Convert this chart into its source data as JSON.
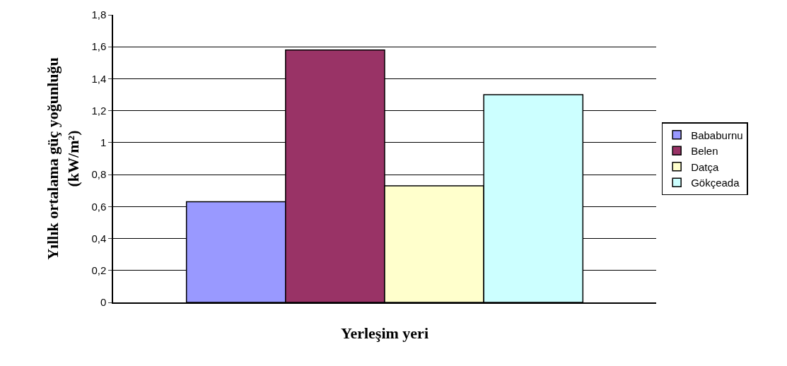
{
  "chart_data": {
    "type": "bar",
    "xlabel": "Yerleşim yeri",
    "ylabel": "Yıllık ortalama güç yoğunluğu\n(kW/m²)",
    "categories": [
      null
    ],
    "series": [
      {
        "name": "Bababurnu",
        "color": "#9999ff",
        "values": [
          0.63
        ]
      },
      {
        "name": "Belen",
        "color": "#993366",
        "values": [
          1.58
        ]
      },
      {
        "name": "Datça",
        "color": "#ffffcc",
        "values": [
          0.73
        ]
      },
      {
        "name": "Gökçeada",
        "color": "#ccffff",
        "values": [
          1.3
        ]
      }
    ],
    "ylim": [
      0,
      1.8
    ],
    "yticks": [
      {
        "value": 0,
        "label": "0"
      },
      {
        "value": 0.2,
        "label": "0,2"
      },
      {
        "value": 0.4,
        "label": "0,4"
      },
      {
        "value": 0.6,
        "label": "0,6"
      },
      {
        "value": 0.8,
        "label": "0,8"
      },
      {
        "value": 1,
        "label": "1"
      },
      {
        "value": 1.2,
        "label": "1,2"
      },
      {
        "value": 1.4,
        "label": "1,4"
      },
      {
        "value": 1.6,
        "label": "1,6"
      },
      {
        "value": 1.8,
        "label": "1,8"
      }
    ],
    "grid": "y",
    "legend": "right",
    "tick_labels": "y"
  }
}
